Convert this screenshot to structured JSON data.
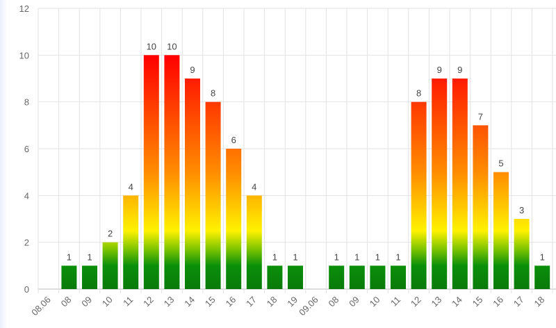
{
  "chart_data": {
    "type": "bar",
    "ylim": [
      0,
      12
    ],
    "yticks": [
      0,
      2,
      4,
      6,
      8,
      10,
      12
    ],
    "grid": true,
    "categories": [
      "08.06",
      "08",
      "09",
      "10",
      "11",
      "12",
      "13",
      "14",
      "15",
      "16",
      "17",
      "18",
      "19",
      "09.06",
      "08",
      "09",
      "10",
      "11",
      "12",
      "13",
      "14",
      "15",
      "16",
      "17",
      "18"
    ],
    "values": [
      null,
      1,
      1,
      2,
      4,
      10,
      10,
      9,
      8,
      6,
      4,
      1,
      1,
      null,
      1,
      1,
      1,
      1,
      8,
      9,
      9,
      7,
      5,
      3,
      1
    ],
    "data_labels": [
      "",
      "1",
      "1",
      "2",
      "4",
      "10",
      "10",
      "9",
      "8",
      "6",
      "4",
      "1",
      "1",
      "",
      "1",
      "1",
      "1",
      "1",
      "8",
      "9",
      "9",
      "7",
      "5",
      "3",
      "1"
    ],
    "colors": {
      "low": "#0a8a0a",
      "mid": "#fff200",
      "high": "#ff0000",
      "grid": "#e2e2e2",
      "axis": "#b8b8b8"
    }
  }
}
